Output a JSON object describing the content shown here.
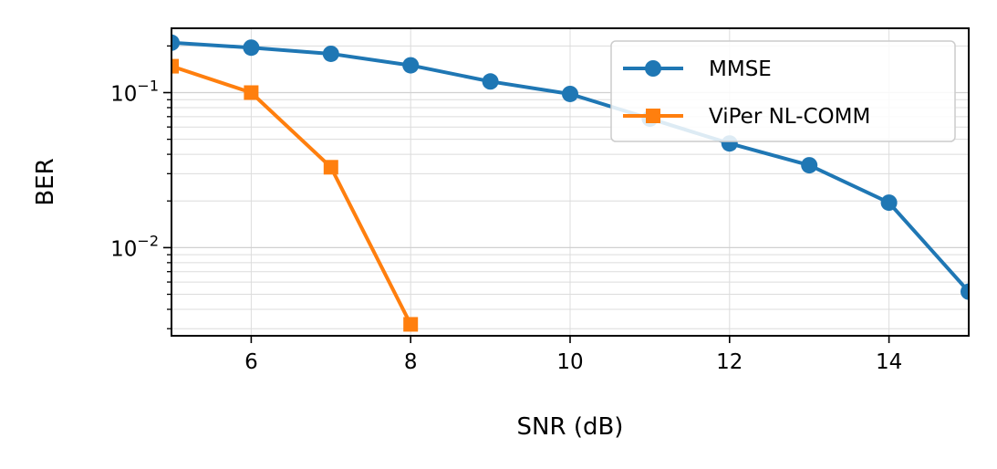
{
  "chart_data": {
    "type": "line",
    "xlabel": "SNR (dB)",
    "ylabel": "BER",
    "xlim": [
      5,
      15
    ],
    "ylim": [
      0.0027,
      0.26
    ],
    "yscale": "log",
    "x_ticks": [
      6,
      8,
      10,
      12,
      14
    ],
    "y_ticks": [
      {
        "value": 0.1,
        "base": "10",
        "exp": "−1"
      },
      {
        "value": 0.01,
        "base": "10",
        "exp": "−2"
      }
    ],
    "grid": true,
    "legend_position": "top-right",
    "series": [
      {
        "name": "MMSE",
        "color": "#1f77b4",
        "marker": "circle",
        "x": [
          5,
          6,
          7,
          8,
          9,
          10,
          11,
          12,
          13,
          14,
          15
        ],
        "y": [
          0.21,
          0.195,
          0.178,
          0.15,
          0.118,
          0.098,
          0.068,
          0.047,
          0.034,
          0.0195,
          0.0052
        ]
      },
      {
        "name": "ViPer NL-COMM",
        "color": "#ff7f0e",
        "marker": "square",
        "x": [
          5,
          6,
          7,
          8
        ],
        "y": [
          0.148,
          0.1,
          0.033,
          0.0032
        ]
      }
    ]
  }
}
